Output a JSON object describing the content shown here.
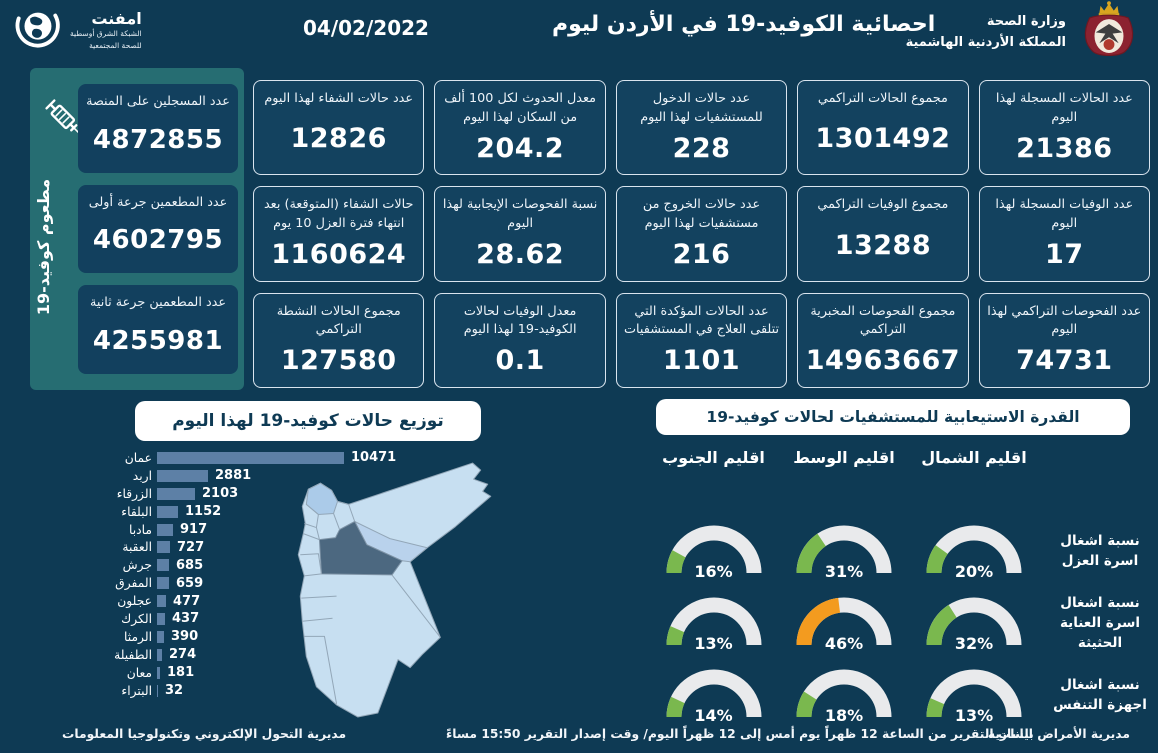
{
  "header": {
    "logo": {
      "title": "امفنت",
      "subtitle1": "الشبكة الشرق أوسطية",
      "subtitle2": "للصحة المجتمعية"
    },
    "date": "04/02/2022",
    "title": "احصائية الكوفيد-19 في الأردن ليوم",
    "ministry": {
      "line1": "وزارة الصحة",
      "line2": "المملكة الأردنية الهاشمية"
    }
  },
  "vaccine_panel": {
    "vertical_label": "مطعوم كوفيد-19",
    "cards": [
      {
        "label": "عدد المسجلين على المنصة",
        "value": "4872855"
      },
      {
        "label": "عدد المطعمين جرعة أولى",
        "value": "4602795"
      },
      {
        "label": "عدد المطعمين جرعة ثانية",
        "value": "4255981"
      }
    ]
  },
  "stat_cards": [
    {
      "label": "عدد الحالات المسجلة لهذا اليوم",
      "value": "21386"
    },
    {
      "label": "مجموع الحالات التراكمي",
      "value": "1301492"
    },
    {
      "label": "عدد حالات الدخول للمستشفيات لهذا اليوم",
      "value": "228"
    },
    {
      "label": "معدل الحدوث لكل 100 ألف من السكان لهذا اليوم",
      "value": "204.2"
    },
    {
      "label": "عدد حالات الشفاء لهذا اليوم",
      "value": "12826"
    },
    {
      "label": "عدد الوفيات المسجلة لهذا اليوم",
      "value": "17"
    },
    {
      "label": "مجموع الوفيات التراكمي",
      "value": "13288"
    },
    {
      "label": "عدد حالات الخروج من مستشفيات لهذا اليوم",
      "value": "216"
    },
    {
      "label": "نسبة الفحوصات الإيجابية لهذا اليوم",
      "value": "28.62"
    },
    {
      "label": "حالات الشفاء (المتوقعة) بعد انتهاء فترة العزل 10 يوم",
      "value": "1160624"
    },
    {
      "label": "عدد الفحوصات التراكمي لهذا اليوم",
      "value": "74731"
    },
    {
      "label": "مجموع الفحوصات المخبرية التراكمي",
      "value": "14963667"
    },
    {
      "label": "عدد الحالات المؤكدة التي تتلقى العلاج في المستشفيات",
      "value": "1101"
    },
    {
      "label": "معدل الوفيات لحالات الكوفيد-19 لهذا اليوم",
      "value": "0.1"
    },
    {
      "label": "مجموع الحالات النشطة التراكمي",
      "value": "127580"
    }
  ],
  "chart_data": [
    {
      "type": "bar",
      "orientation": "horizontal",
      "title": "توزيع حالات كوفيد-19 لهذا اليوم",
      "categories": [
        "عمان",
        "اربد",
        "الزرقاء",
        "البلقاء",
        "مادبا",
        "العقبة",
        "جرش",
        "المفرق",
        "عجلون",
        "الكرك",
        "الرمثا",
        "الطفيلة",
        "معان",
        "البتراء"
      ],
      "values": [
        10471,
        2881,
        2103,
        1152,
        917,
        727,
        685,
        659,
        477,
        437,
        390,
        274,
        181,
        32
      ]
    },
    {
      "type": "gauge",
      "title": "القدرة الاستيعابية للمستشفيات لحالات كوفيد-19",
      "columns": [
        "اقليم الشمال",
        "اقليم الوسط",
        "اقليم الجنوب"
      ],
      "rows": [
        {
          "label": "نسبة اشغال اسرة العزل",
          "values_pct": [
            20,
            31,
            16
          ],
          "colors": [
            "green",
            "green",
            "green"
          ]
        },
        {
          "label": "نسبة اشغال اسرة العناية الحثيثة",
          "values_pct": [
            32,
            46,
            13
          ],
          "colors": [
            "green",
            "orange",
            "green"
          ]
        },
        {
          "label": "نسبة اشغال اجهزة التنفس",
          "values_pct": [
            13,
            18,
            14
          ],
          "colors": [
            "green",
            "green",
            "green"
          ]
        }
      ]
    }
  ],
  "footer": {
    "right": "مديرية الأمراض السارية",
    "center": "بيانات التقرير من الساعة 12 ظهراً يوم أمس إلى 12 ظهراً اليوم/ وقت إصدار التقرير 15:50 مساءً",
    "left": "مديرية التحول الإلكتروني وتكنولوجيا المعلومات"
  },
  "colors": {
    "background": "#0e3a54",
    "card": "#13425f",
    "teal_panel": "#266d72",
    "bar": "#5d80a6",
    "gauge_green": "#7ab84e",
    "gauge_orange": "#f39b1f",
    "gauge_track": "#e9eaec",
    "map_light": "#c7dff1",
    "map_medium": "#abcbe9",
    "map_dark": "#4c6880"
  }
}
